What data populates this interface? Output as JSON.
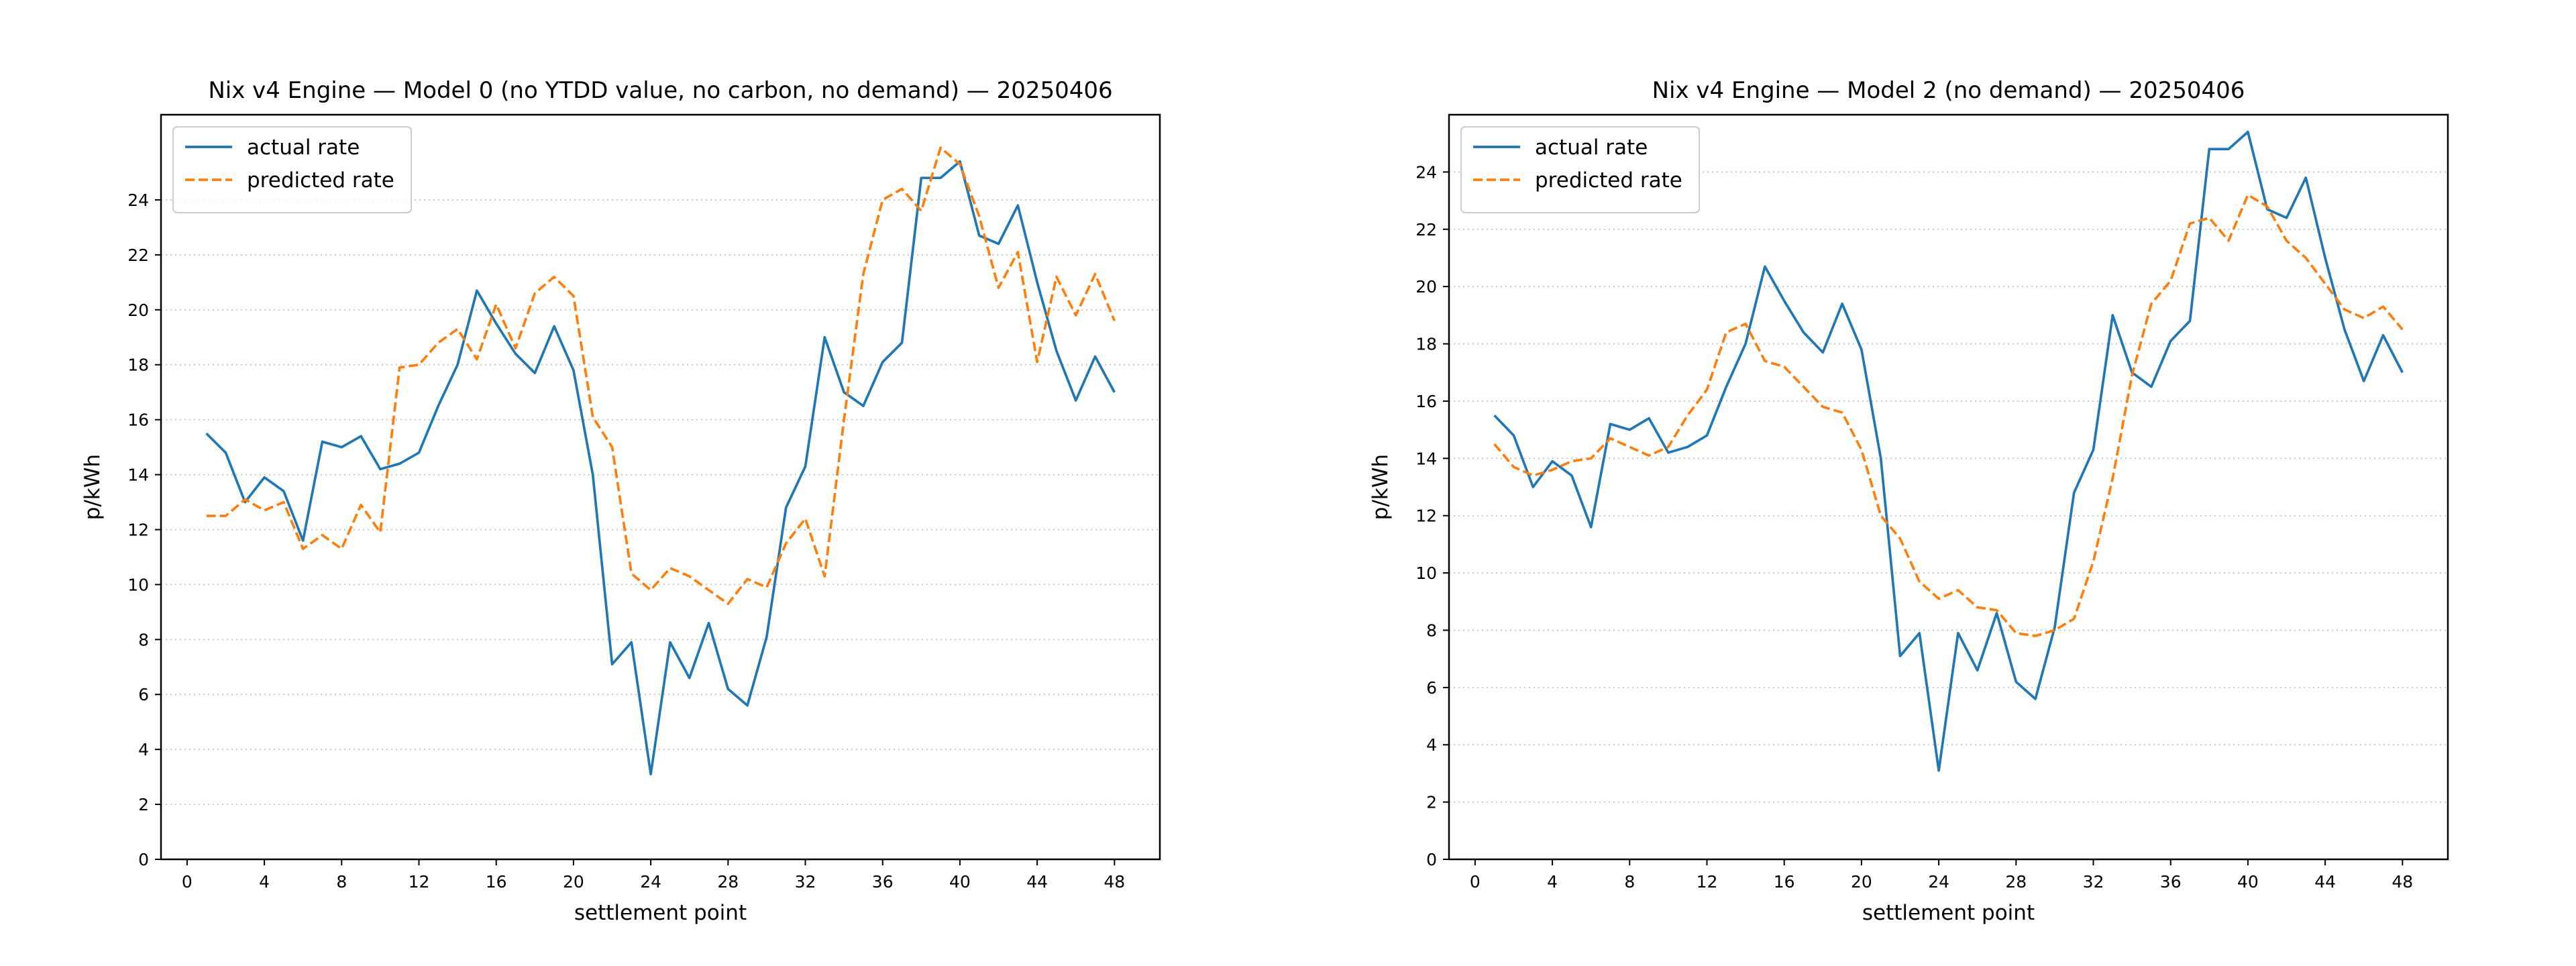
{
  "chart_data": [
    {
      "type": "line",
      "title": "Nix v4 Engine — Model 0 (no YTDD value, no carbon, no demand) — 20250406",
      "xlabel": "settlement point",
      "ylabel": "p/kWh",
      "x": [
        1,
        2,
        3,
        4,
        5,
        6,
        7,
        8,
        9,
        10,
        11,
        12,
        13,
        14,
        15,
        16,
        17,
        18,
        19,
        20,
        21,
        22,
        23,
        24,
        25,
        26,
        27,
        28,
        29,
        30,
        31,
        32,
        33,
        34,
        35,
        36,
        37,
        38,
        39,
        40,
        41,
        42,
        43,
        44,
        45,
        46,
        47,
        48
      ],
      "series": [
        {
          "name": "actual rate",
          "color": "#1f77b4",
          "linestyle": "solid",
          "values": [
            15.5,
            14.8,
            13.0,
            13.9,
            13.4,
            11.6,
            15.2,
            15.0,
            15.4,
            14.2,
            14.4,
            14.8,
            16.5,
            18.0,
            20.7,
            19.5,
            18.4,
            17.7,
            19.4,
            17.8,
            14.0,
            7.1,
            7.9,
            3.1,
            7.9,
            6.6,
            8.6,
            6.2,
            5.6,
            8.1,
            12.8,
            14.3,
            19.0,
            17.0,
            16.5,
            18.1,
            18.8,
            24.8,
            24.8,
            25.4,
            22.7,
            22.4,
            23.8,
            21.0,
            18.5,
            16.7,
            18.3,
            17.0
          ]
        },
        {
          "name": "predicted rate",
          "color": "#ff7f0e",
          "linestyle": "dashed",
          "values": [
            12.5,
            12.5,
            13.1,
            12.7,
            13.0,
            11.3,
            11.8,
            11.3,
            12.9,
            11.9,
            17.9,
            18.0,
            18.8,
            19.3,
            18.2,
            20.2,
            18.6,
            20.6,
            21.2,
            20.5,
            16.1,
            15.0,
            10.4,
            9.8,
            10.6,
            10.3,
            9.8,
            9.3,
            10.2,
            9.9,
            11.5,
            12.4,
            10.3,
            16.0,
            21.3,
            24.0,
            24.4,
            23.6,
            25.9,
            25.3,
            23.4,
            20.8,
            22.1,
            18.1,
            21.2,
            19.8,
            21.3,
            19.6
          ]
        }
      ],
      "xlim": [
        -1.35,
        50.35
      ],
      "ylim": [
        0,
        27.1
      ],
      "xticks": [
        0,
        4,
        8,
        12,
        16,
        20,
        24,
        28,
        32,
        36,
        40,
        44,
        48
      ],
      "yticks": [
        0,
        2,
        4,
        6,
        8,
        10,
        12,
        14,
        16,
        18,
        20,
        22,
        24
      ],
      "grid": true,
      "legend": "upper left"
    },
    {
      "type": "line",
      "title": "Nix v4 Engine — Model 2 (no demand) — 20250406",
      "xlabel": "settlement point",
      "ylabel": "p/kWh",
      "x": [
        1,
        2,
        3,
        4,
        5,
        6,
        7,
        8,
        9,
        10,
        11,
        12,
        13,
        14,
        15,
        16,
        17,
        18,
        19,
        20,
        21,
        22,
        23,
        24,
        25,
        26,
        27,
        28,
        29,
        30,
        31,
        32,
        33,
        34,
        35,
        36,
        37,
        38,
        39,
        40,
        41,
        42,
        43,
        44,
        45,
        46,
        47,
        48
      ],
      "series": [
        {
          "name": "actual rate",
          "color": "#1f77b4",
          "linestyle": "solid",
          "values": [
            15.5,
            14.8,
            13.0,
            13.9,
            13.4,
            11.6,
            15.2,
            15.0,
            15.4,
            14.2,
            14.4,
            14.8,
            16.5,
            18.0,
            20.7,
            19.5,
            18.4,
            17.7,
            19.4,
            17.8,
            14.0,
            7.1,
            7.9,
            3.1,
            7.9,
            6.6,
            8.6,
            6.2,
            5.6,
            8.1,
            12.8,
            14.3,
            19.0,
            17.0,
            16.5,
            18.1,
            18.8,
            24.8,
            24.8,
            25.4,
            22.7,
            22.4,
            23.8,
            21.0,
            18.5,
            16.7,
            18.3,
            17.0
          ]
        },
        {
          "name": "predicted rate",
          "color": "#ff7f0e",
          "linestyle": "dashed",
          "values": [
            14.5,
            13.7,
            13.4,
            13.6,
            13.9,
            14.0,
            14.7,
            14.4,
            14.1,
            14.4,
            15.5,
            16.4,
            18.4,
            18.7,
            17.4,
            17.2,
            16.5,
            15.8,
            15.6,
            14.3,
            12.0,
            11.2,
            9.7,
            9.1,
            9.4,
            8.8,
            8.7,
            7.9,
            7.8,
            8.0,
            8.4,
            10.4,
            13.3,
            16.9,
            19.4,
            20.2,
            22.2,
            22.4,
            21.6,
            23.2,
            22.8,
            21.6,
            21.0,
            20.1,
            19.2,
            18.9,
            19.3,
            18.5
          ]
        }
      ],
      "xlim": [
        -1.35,
        50.35
      ],
      "ylim": [
        0,
        26.0
      ],
      "xticks": [
        0,
        4,
        8,
        12,
        16,
        20,
        24,
        28,
        32,
        36,
        40,
        44,
        48
      ],
      "yticks": [
        0,
        2,
        4,
        6,
        8,
        10,
        12,
        14,
        16,
        18,
        20,
        22,
        24
      ],
      "grid": true,
      "legend": "upper left"
    }
  ]
}
